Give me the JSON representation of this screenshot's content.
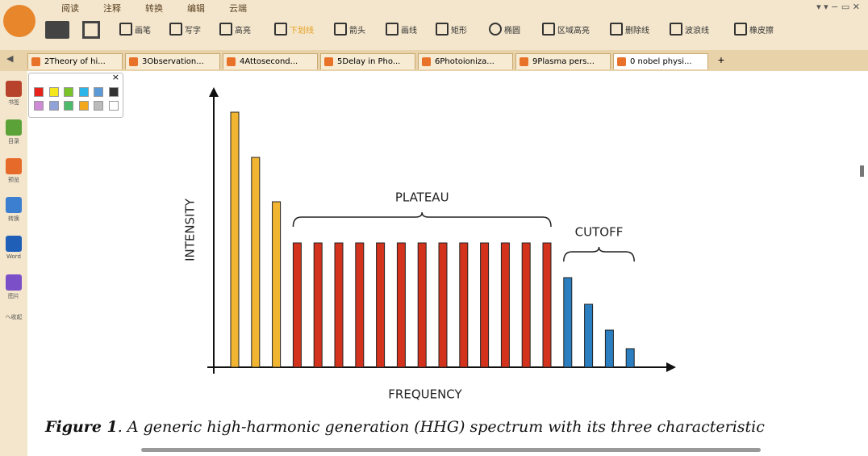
{
  "menu": [
    "阅读",
    "注释",
    "转换",
    "编辑",
    "云端"
  ],
  "tools": [
    "画笔",
    "写字",
    "高亮",
    "下划线",
    "箭头",
    "画线",
    "矩形",
    "椭圆",
    "区域高亮",
    "删除线",
    "波浪线",
    "橡皮擦"
  ],
  "tabs": [
    "2Theory of hi...",
    "3Observation...",
    "4Attosecond...",
    "5Delay in Pho...",
    "6Photoioniza...",
    "9Plasma pers...",
    "0 nobel physi..."
  ],
  "sidebar": [
    "书签",
    "目录",
    "预览",
    "转换",
    "Word",
    "图片",
    "へ收起"
  ],
  "chart_data": {
    "type": "bar",
    "categories": [
      null,
      null,
      null,
      null,
      null,
      null,
      null,
      null,
      null,
      null,
      null,
      null,
      null,
      null,
      null,
      null,
      null,
      null,
      null,
      null
    ],
    "series": [
      {
        "color": "#f2b531",
        "values": [
          316,
          260,
          205,
          null,
          null,
          null,
          null,
          null,
          null,
          null,
          null,
          null,
          null,
          null,
          null,
          null,
          null,
          null,
          null,
          null
        ]
      },
      {
        "color": "#d3321d",
        "values": [
          null,
          null,
          null,
          154,
          154,
          154,
          154,
          154,
          154,
          154,
          154,
          154,
          154,
          154,
          154,
          154,
          null,
          null,
          null,
          null
        ]
      },
      {
        "color": "#2b7fc0",
        "values": [
          null,
          null,
          null,
          null,
          null,
          null,
          null,
          null,
          null,
          null,
          null,
          null,
          null,
          null,
          null,
          null,
          111,
          78,
          46,
          23
        ]
      }
    ],
    "ylim": [
      0,
      345
    ],
    "y_label": "INTENSITY",
    "x_label": "FREQUENCY",
    "annotations": [
      "PLATEAU",
      "CUTOFF"
    ]
  },
  "caption": {
    "label": "Figure 1",
    "text": ". A generic high-harmonic generation (HHG) spectrum with its three characteristic"
  }
}
